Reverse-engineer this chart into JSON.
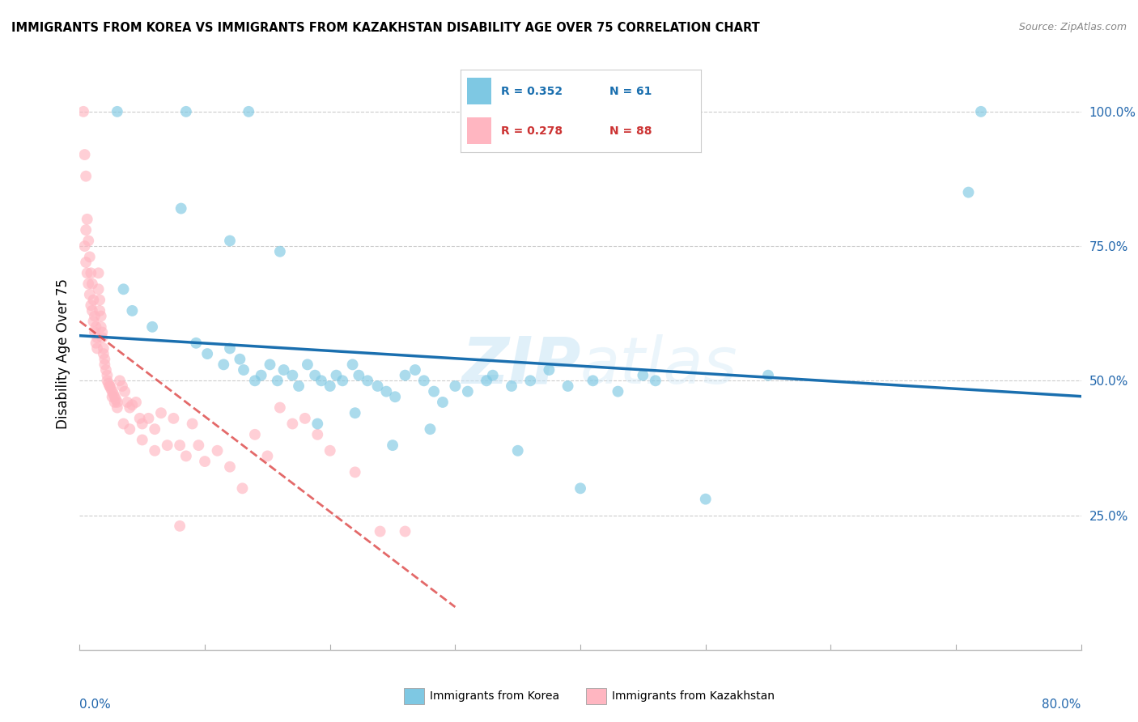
{
  "title": "IMMIGRANTS FROM KOREA VS IMMIGRANTS FROM KAZAKHSTAN DISABILITY AGE OVER 75 CORRELATION CHART",
  "source": "Source: ZipAtlas.com",
  "ylabel": "Disability Age Over 75",
  "xlim": [
    0.0,
    80.0
  ],
  "ylim": [
    0.0,
    110.0
  ],
  "right_yticks": [
    25.0,
    50.0,
    75.0,
    100.0
  ],
  "right_yticklabels": [
    "25.0%",
    "50.0%",
    "75.0%",
    "100.0%"
  ],
  "blue_color": "#7ec8e3",
  "pink_color": "#ffb6c1",
  "blue_line_color": "#1a6faf",
  "pink_line_color": "#d44",
  "watermark_zip": "ZIP",
  "watermark_atlas": "atlas",
  "korea_x": [
    3.5,
    4.2,
    5.8,
    8.1,
    9.3,
    10.2,
    11.5,
    12.0,
    12.8,
    13.1,
    14.0,
    14.5,
    15.2,
    15.8,
    16.3,
    17.0,
    17.5,
    18.2,
    18.8,
    19.3,
    20.0,
    20.5,
    21.0,
    21.8,
    22.3,
    23.0,
    23.8,
    24.5,
    25.2,
    26.0,
    26.8,
    27.5,
    28.3,
    29.0,
    30.0,
    31.0,
    32.5,
    33.0,
    34.5,
    36.0,
    37.5,
    39.0,
    41.0,
    43.0,
    46.0,
    55.0,
    71.0,
    3.0,
    8.5,
    13.5,
    16.0,
    19.0,
    22.0,
    25.0,
    28.0,
    35.0,
    40.0,
    45.0,
    50.0,
    72.0,
    12.0
  ],
  "korea_y": [
    67.0,
    63.0,
    60.0,
    82.0,
    57.0,
    55.0,
    53.0,
    56.0,
    54.0,
    52.0,
    50.0,
    51.0,
    53.0,
    50.0,
    52.0,
    51.0,
    49.0,
    53.0,
    51.0,
    50.0,
    49.0,
    51.0,
    50.0,
    53.0,
    51.0,
    50.0,
    49.0,
    48.0,
    47.0,
    51.0,
    52.0,
    50.0,
    48.0,
    46.0,
    49.0,
    48.0,
    50.0,
    51.0,
    49.0,
    50.0,
    52.0,
    49.0,
    50.0,
    48.0,
    50.0,
    51.0,
    85.0,
    100.0,
    100.0,
    100.0,
    74.0,
    42.0,
    44.0,
    38.0,
    41.0,
    37.0,
    30.0,
    51.0,
    28.0,
    100.0,
    76.0
  ],
  "kazakhstan_x": [
    0.3,
    0.4,
    0.5,
    0.5,
    0.6,
    0.7,
    0.8,
    0.9,
    1.0,
    1.1,
    1.2,
    1.3,
    1.4,
    1.5,
    1.6,
    1.7,
    1.8,
    1.9,
    2.0,
    2.1,
    2.2,
    2.3,
    2.4,
    2.5,
    2.6,
    2.7,
    2.8,
    2.9,
    3.0,
    3.2,
    3.4,
    3.6,
    3.8,
    4.0,
    4.2,
    4.5,
    4.8,
    5.0,
    5.5,
    6.0,
    6.5,
    7.0,
    7.5,
    8.0,
    8.5,
    9.0,
    9.5,
    10.0,
    11.0,
    12.0,
    13.0,
    14.0,
    15.0,
    16.0,
    17.0,
    18.0,
    19.0,
    20.0,
    22.0,
    24.0,
    26.0,
    0.4,
    0.5,
    0.6,
    0.7,
    0.8,
    0.9,
    1.0,
    1.1,
    1.2,
    1.3,
    1.4,
    1.5,
    1.6,
    1.7,
    1.8,
    1.9,
    2.0,
    2.2,
    2.4,
    2.6,
    2.8,
    3.0,
    3.5,
    4.0,
    5.0,
    6.0,
    8.0
  ],
  "kazakhstan_y": [
    100.0,
    92.0,
    88.0,
    78.0,
    80.0,
    76.0,
    73.0,
    70.0,
    68.0,
    65.0,
    62.0,
    60.0,
    58.0,
    70.0,
    65.0,
    62.0,
    59.0,
    56.0,
    54.0,
    52.0,
    50.0,
    49.5,
    49.0,
    48.5,
    48.0,
    47.5,
    47.0,
    46.5,
    46.0,
    50.0,
    49.0,
    48.0,
    46.0,
    45.0,
    45.5,
    46.0,
    43.0,
    42.0,
    43.0,
    41.0,
    44.0,
    38.0,
    43.0,
    38.0,
    36.0,
    42.0,
    38.0,
    35.0,
    37.0,
    34.0,
    30.0,
    40.0,
    36.0,
    45.0,
    42.0,
    43.0,
    40.0,
    37.0,
    33.0,
    22.0,
    22.0,
    75.0,
    72.0,
    70.0,
    68.0,
    66.0,
    64.0,
    63.0,
    61.0,
    59.0,
    57.0,
    56.0,
    67.0,
    63.0,
    60.0,
    58.0,
    55.0,
    53.0,
    51.0,
    49.0,
    47.0,
    46.0,
    45.0,
    42.0,
    41.0,
    39.0,
    37.0,
    23.0
  ]
}
